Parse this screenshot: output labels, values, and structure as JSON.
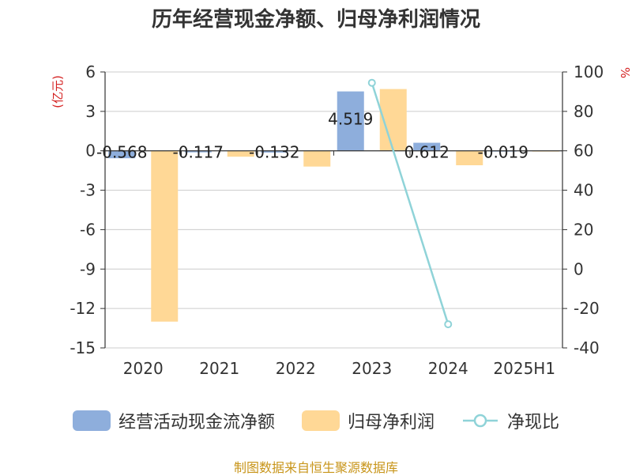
{
  "title": "历年经营现金净额、归母净利润情况",
  "source": "制图数据来自恒生聚源数据库",
  "chart_data": {
    "type": "bar",
    "categories": [
      "2020",
      "2021",
      "2022",
      "2023",
      "2024",
      "2025H1"
    ],
    "y_left": {
      "unit": "(亿元)",
      "ticks": [
        6,
        3,
        0,
        -3,
        -6,
        -9,
        -12,
        -15
      ],
      "range": [
        -15,
        6
      ]
    },
    "y_right": {
      "unit": "%",
      "ticks": [
        100,
        80,
        60,
        40,
        20,
        0,
        -20,
        -40
      ],
      "range": [
        -40,
        100
      ]
    },
    "series": [
      {
        "name": "经营活动现金流净额",
        "type": "bar",
        "axis": "left",
        "color": "#8eaedc",
        "values": [
          -0.568,
          -0.117,
          -0.132,
          4.519,
          0.612,
          -0.019
        ],
        "labels": [
          "-0.568",
          "-0.117",
          "-0.132",
          "4.519",
          "0.612",
          "-0.019"
        ]
      },
      {
        "name": "归母净利润",
        "type": "bar",
        "axis": "left",
        "color": "#ffd896",
        "values": [
          -13.0,
          -0.45,
          -1.2,
          4.7,
          -1.1,
          -0.02
        ]
      },
      {
        "name": "净现比",
        "type": "line",
        "axis": "right",
        "color": "#8fd3d8",
        "values": [
          null,
          null,
          null,
          94.5,
          -28,
          null
        ]
      }
    ]
  }
}
